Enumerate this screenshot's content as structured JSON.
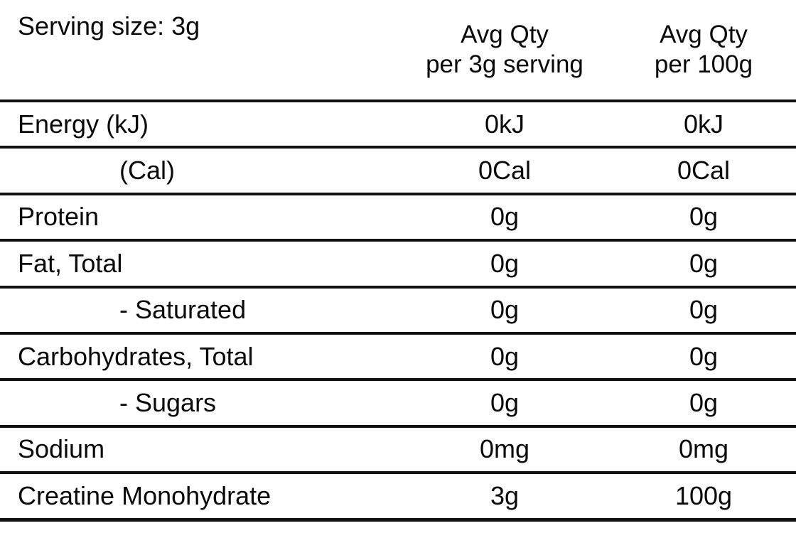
{
  "colors": {
    "background": "#ffffff",
    "text": "#0a0a0a",
    "rule": "#111111"
  },
  "header": {
    "serving_size": "Serving size: 3g",
    "col1": {
      "line1": "Avg Qty",
      "line2": "per 3g serving"
    },
    "col2": {
      "line1": "Avg Qty",
      "line2": "per 100g"
    }
  },
  "rows": [
    {
      "label": "Energy (kJ)",
      "indent": false,
      "per_serving": "0kJ",
      "per_100g": "0kJ"
    },
    {
      "label": "(Cal)",
      "indent": true,
      "per_serving": "0Cal",
      "per_100g": "0Cal"
    },
    {
      "label": "Protein",
      "indent": false,
      "per_serving": "0g",
      "per_100g": "0g"
    },
    {
      "label": "Fat, Total",
      "indent": false,
      "per_serving": "0g",
      "per_100g": "0g"
    },
    {
      "label": "- Saturated",
      "indent": true,
      "per_serving": "0g",
      "per_100g": "0g"
    },
    {
      "label": "Carbohydrates, Total",
      "indent": false,
      "per_serving": "0g",
      "per_100g": "0g"
    },
    {
      "label": "- Sugars",
      "indent": true,
      "per_serving": "0g",
      "per_100g": "0g"
    },
    {
      "label": "Sodium",
      "indent": false,
      "per_serving": "0mg",
      "per_100g": "0mg"
    },
    {
      "label": "Creatine Monohydrate",
      "indent": false,
      "per_serving": "3g",
      "per_100g": "100g"
    }
  ]
}
